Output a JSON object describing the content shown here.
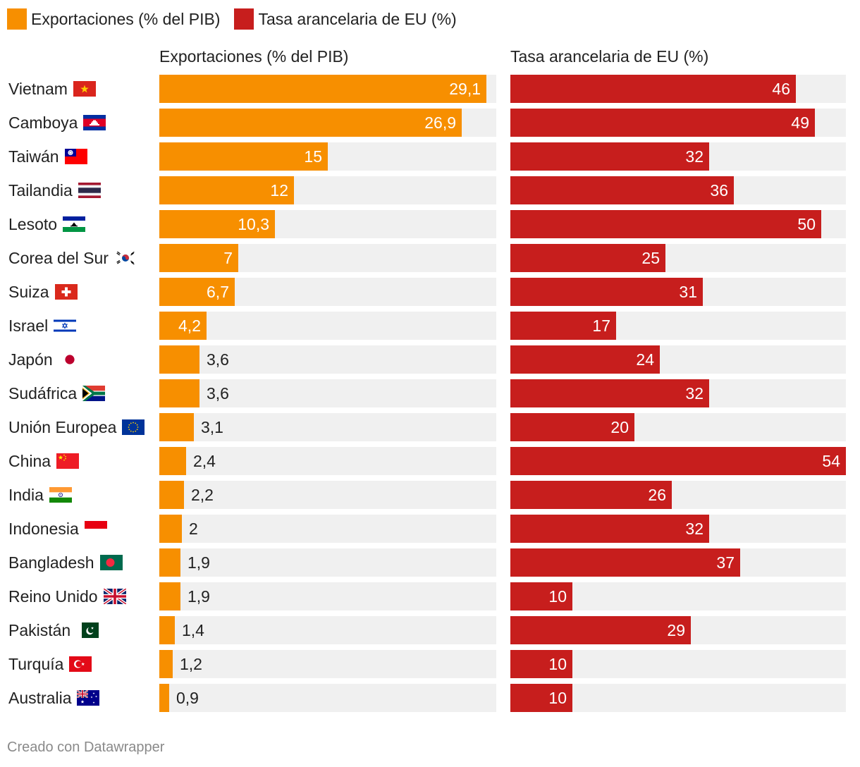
{
  "legend": [
    {
      "label": "Exportaciones (% del PIB)",
      "color": "#f78f00"
    },
    {
      "label": "Tasa arancelaria de EU (%)",
      "color": "#c71e1d"
    }
  ],
  "columns": {
    "left_title": "Exportaciones (% del PIB)",
    "right_title": "Tasa arancelaria de EU (%)"
  },
  "footer": "Creado con Datawrapper",
  "colors": {
    "exports": "#f78f00",
    "tariff": "#c71e1d",
    "track": "#f0f0f0"
  },
  "chart_data": {
    "type": "bar",
    "orientation": "horizontal",
    "grid": false,
    "legend_position": "top-left",
    "categories": [
      "Vietnam",
      "Camboya",
      "Taiwán",
      "Tailandia",
      "Lesoto",
      "Corea del Sur",
      "Suiza",
      "Israel",
      "Japón",
      "Sudáfrica",
      "Unión Europea",
      "China",
      "India",
      "Indonesia",
      "Bangladesh",
      "Reino Unido",
      "Pakistán",
      "Turquía",
      "Australia"
    ],
    "flags": [
      "vietnam-flag-icon",
      "cambodia-flag-icon",
      "taiwan-flag-icon",
      "thailand-flag-icon",
      "lesotho-flag-icon",
      "south-korea-flag-icon",
      "switzerland-flag-icon",
      "israel-flag-icon",
      "japan-flag-icon",
      "south-africa-flag-icon",
      "european-union-flag-icon",
      "china-flag-icon",
      "india-flag-icon",
      "indonesia-flag-icon",
      "bangladesh-flag-icon",
      "united-kingdom-flag-icon",
      "pakistan-flag-icon",
      "turkey-flag-icon",
      "australia-flag-icon"
    ],
    "series": [
      {
        "name": "Exportaciones (% del PIB)",
        "xlim": [
          0,
          30
        ],
        "values": [
          29.1,
          26.9,
          15,
          12,
          10.3,
          7,
          6.7,
          4.2,
          3.6,
          3.6,
          3.1,
          2.4,
          2.2,
          2,
          1.9,
          1.9,
          1.4,
          1.2,
          0.9
        ],
        "labels": [
          "29,1",
          "26,9",
          "15",
          "12",
          "10,3",
          "7",
          "6,7",
          "4,2",
          "3,6",
          "3,6",
          "3,1",
          "2,4",
          "2,2",
          "2",
          "1,9",
          "1,9",
          "1,4",
          "1,2",
          "0,9"
        ]
      },
      {
        "name": "Tasa arancelaria de EU (%)",
        "xlim": [
          0,
          54
        ],
        "values": [
          46,
          49,
          32,
          36,
          50,
          25,
          31,
          17,
          24,
          32,
          20,
          54,
          26,
          32,
          37,
          10,
          29,
          10,
          10
        ],
        "labels": [
          "46",
          "49",
          "32",
          "36",
          "50",
          "25",
          "31",
          "17",
          "24",
          "32",
          "20",
          "54",
          "26",
          "32",
          "37",
          "10",
          "29",
          "10",
          "10"
        ]
      }
    ]
  }
}
